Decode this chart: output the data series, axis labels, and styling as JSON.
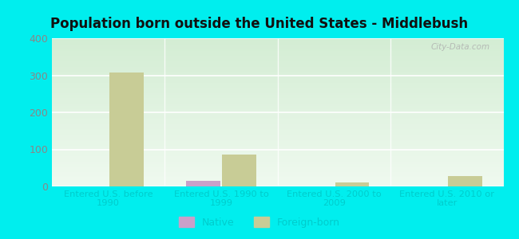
{
  "title": "Population born outside the United States - Middlebush",
  "categories": [
    "Entered U.S. before\n1990",
    "Entered U.S. 1990 to\n1999",
    "Entered U.S. 2000 to\n2009",
    "Entered U.S. 2010 or\nlater"
  ],
  "native_values": [
    0,
    15,
    0,
    0
  ],
  "foreign_born_values": [
    308,
    85,
    10,
    28
  ],
  "native_color": "#c9a0c9",
  "foreign_born_color": "#c8cc96",
  "plot_bg_top": "#d4ecd4",
  "plot_bg_bottom": "#f0faf0",
  "outer_background": "#00eeee",
  "ylim": [
    0,
    400
  ],
  "yticks": [
    0,
    100,
    200,
    300,
    400
  ],
  "bar_width": 0.3,
  "watermark": "City-Data.com",
  "legend_native": "Native",
  "legend_foreign": "Foreign-born",
  "tick_color": "#888888",
  "xlabel_color": "#00cccc",
  "title_color": "#111111"
}
